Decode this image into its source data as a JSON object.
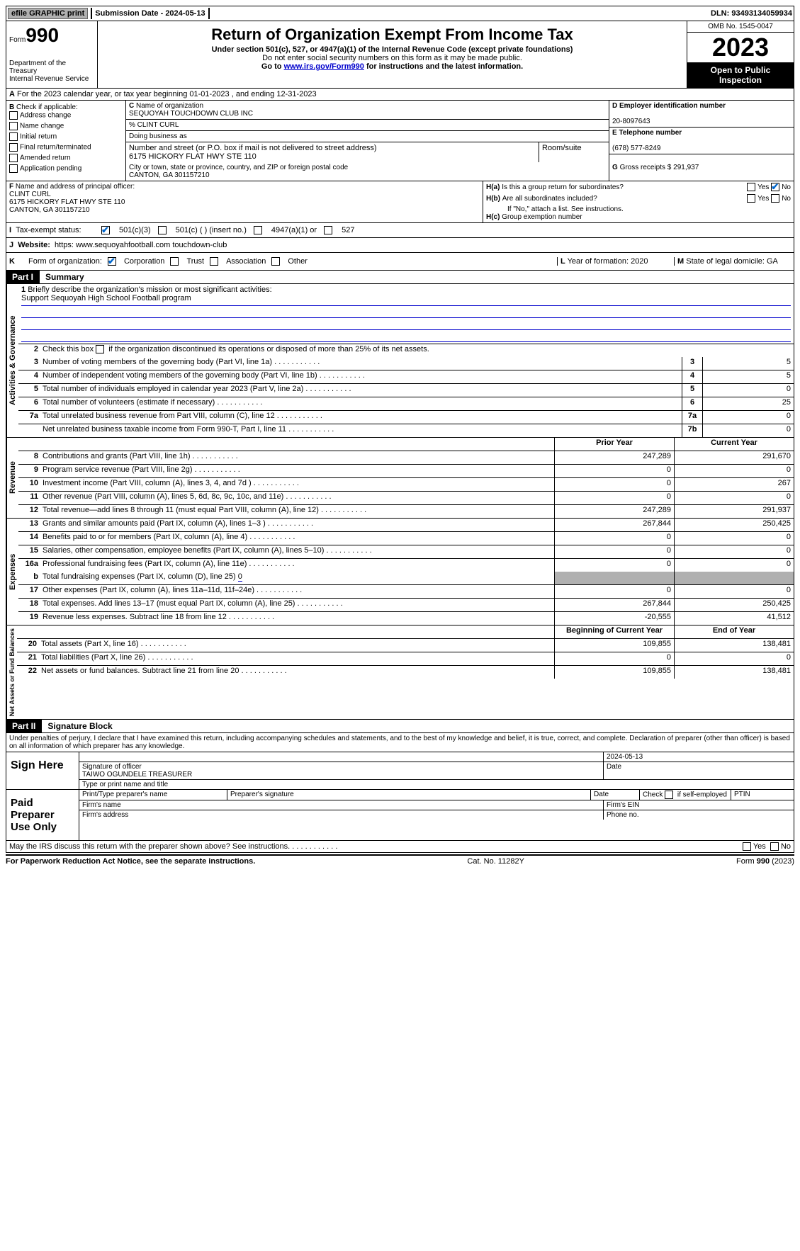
{
  "topbar": {
    "efile": "efile GRAPHIC print",
    "submission_label": "Submission Date - 2024-05-13",
    "dln": "DLN: 93493134059934"
  },
  "header": {
    "form_prefix": "Form",
    "form_number": "990",
    "department": "Department of the Treasury",
    "irs": "Internal Revenue Service",
    "title": "Return of Organization Exempt From Income Tax",
    "subtitle": "Under section 501(c), 527, or 4947(a)(1) of the Internal Revenue Code (except private foundations)",
    "line2": "Do not enter social security numbers on this form as it may be made public.",
    "line3_pre": "Go to ",
    "line3_link": "www.irs.gov/Form990",
    "line3_post": " for instructions and the latest information.",
    "omb": "OMB No. 1545-0047",
    "year": "2023",
    "open_public": "Open to Public Inspection"
  },
  "line_a": {
    "a": "A",
    "text": "For the 2023 calendar year, or tax year beginning 01-01-2023   , and ending 12-31-2023"
  },
  "box_b": {
    "label": "B",
    "hint": "Check if applicable:",
    "items": [
      "Address change",
      "Name change",
      "Initial return",
      "Final return/terminated",
      "Amended return",
      "Application pending"
    ]
  },
  "box_c": {
    "label": "C",
    "name_label": "Name of organization",
    "name": "SEQUOYAH TOUCHDOWN CLUB INC",
    "care_of": "% CLINT CURL",
    "dba_label": "Doing business as",
    "street_label": "Number and street (or P.O. box if mail is not delivered to street address)",
    "street": "6175 HICKORY FLAT HWY STE 110",
    "room_label": "Room/suite",
    "city_label": "City or town, state or province, country, and ZIP or foreign postal code",
    "city": "CANTON, GA  301157210"
  },
  "box_d": {
    "label": "D Employer identification number",
    "value": "20-8097643"
  },
  "box_e": {
    "label": "E Telephone number",
    "value": "(678) 577-8249"
  },
  "box_g": {
    "label": "G",
    "text": "Gross receipts $ 291,937"
  },
  "box_f": {
    "label": "F",
    "text": "Name and address of principal officer:",
    "name": "CLINT CURL",
    "line1": "6175 HICKORY FLAT HWY STE 110",
    "line2": "CANTON, GA  301157210"
  },
  "box_h": {
    "ha_label": "H(a)",
    "ha_text": "Is this a group return for subordinates?",
    "hb_label": "H(b)",
    "hb_text": "Are all subordinates included?",
    "hb_note": "If \"No,\" attach a list. See instructions.",
    "hc_label": "H(c)",
    "hc_text": "Group exemption number",
    "yes": "Yes",
    "no": "No"
  },
  "row_i": {
    "label": "I",
    "text": "Tax-exempt status:",
    "opts": [
      "501(c)(3)",
      "501(c) (  ) (insert no.)",
      "4947(a)(1) or",
      "527"
    ]
  },
  "row_j": {
    "label": "J",
    "text": "Website:",
    "value": "https: www.sequoyahfootball.com touchdown-club"
  },
  "row_k": {
    "label": "K",
    "text": "Form of organization:",
    "opts": [
      "Corporation",
      "Trust",
      "Association",
      "Other"
    ],
    "l_label": "L",
    "l_text": "Year of formation: 2020",
    "m_label": "M",
    "m_text": "State of legal domicile: GA"
  },
  "part1": {
    "label": "Part I",
    "title": "Summary",
    "line1_num": "1",
    "line1_text": "Briefly describe the organization's mission or most significant activities:",
    "mission": "Support Sequoyah High School Football program",
    "line2_num": "2",
    "line2_text": "Check this box    if the organization discontinued its operations or disposed of more than 25% of its net assets.",
    "governance_tab": "Activities & Governance",
    "revenue_tab": "Revenue",
    "expenses_tab": "Expenses",
    "netassets_tab": "Net Assets or Fund Balances",
    "prior_year": "Prior Year",
    "current_year": "Current Year",
    "beg_year": "Beginning of Current Year",
    "end_year": "End of Year",
    "rows_gov": [
      {
        "n": "3",
        "d": "Number of voting members of the governing body (Part VI, line 1a)",
        "bn": "3",
        "bv": "5"
      },
      {
        "n": "4",
        "d": "Number of independent voting members of the governing body (Part VI, line 1b)",
        "bn": "4",
        "bv": "5"
      },
      {
        "n": "5",
        "d": "Total number of individuals employed in calendar year 2023 (Part V, line 2a)",
        "bn": "5",
        "bv": "0"
      },
      {
        "n": "6",
        "d": "Total number of volunteers (estimate if necessary)",
        "bn": "6",
        "bv": "25"
      },
      {
        "n": "7a",
        "d": "Total unrelated business revenue from Part VIII, column (C), line 12",
        "bn": "7a",
        "bv": "0"
      },
      {
        "n": "",
        "d": "Net unrelated business taxable income from Form 990-T, Part I, line 11",
        "bn": "7b",
        "bv": "0"
      }
    ],
    "rows_rev": [
      {
        "n": "8",
        "d": "Contributions and grants (Part VIII, line 1h)",
        "p": "247,289",
        "c": "291,670"
      },
      {
        "n": "9",
        "d": "Program service revenue (Part VIII, line 2g)",
        "p": "0",
        "c": "0"
      },
      {
        "n": "10",
        "d": "Investment income (Part VIII, column (A), lines 3, 4, and 7d )",
        "p": "0",
        "c": "267"
      },
      {
        "n": "11",
        "d": "Other revenue (Part VIII, column (A), lines 5, 6d, 8c, 9c, 10c, and 11e)",
        "p": "0",
        "c": "0"
      },
      {
        "n": "12",
        "d": "Total revenue—add lines 8 through 11 (must equal Part VIII, column (A), line 12)",
        "p": "247,289",
        "c": "291,937"
      }
    ],
    "rows_exp": [
      {
        "n": "13",
        "d": "Grants and similar amounts paid (Part IX, column (A), lines 1–3 )",
        "p": "267,844",
        "c": "250,425"
      },
      {
        "n": "14",
        "d": "Benefits paid to or for members (Part IX, column (A), line 4)",
        "p": "0",
        "c": "0"
      },
      {
        "n": "15",
        "d": "Salaries, other compensation, employee benefits (Part IX, column (A), lines 5–10)",
        "p": "0",
        "c": "0"
      },
      {
        "n": "16a",
        "d": "Professional fundraising fees (Part IX, column (A), line 11e)",
        "p": "0",
        "c": "0"
      }
    ],
    "row_16b": {
      "n": "b",
      "d": "Total fundraising expenses (Part IX, column (D), line 25)",
      "v": "0"
    },
    "rows_exp2": [
      {
        "n": "17",
        "d": "Other expenses (Part IX, column (A), lines 11a–11d, 11f–24e)",
        "p": "0",
        "c": "0"
      },
      {
        "n": "18",
        "d": "Total expenses. Add lines 13–17 (must equal Part IX, column (A), line 25)",
        "p": "267,844",
        "c": "250,425"
      },
      {
        "n": "19",
        "d": "Revenue less expenses. Subtract line 18 from line 12",
        "p": "-20,555",
        "c": "41,512"
      }
    ],
    "rows_net": [
      {
        "n": "20",
        "d": "Total assets (Part X, line 16)",
        "p": "109,855",
        "c": "138,481"
      },
      {
        "n": "21",
        "d": "Total liabilities (Part X, line 26)",
        "p": "0",
        "c": "0"
      },
      {
        "n": "22",
        "d": "Net assets or fund balances. Subtract line 21 from line 20",
        "p": "109,855",
        "c": "138,481"
      }
    ]
  },
  "part2": {
    "label": "Part II",
    "title": "Signature Block",
    "declaration": "Under penalties of perjury, I declare that I have examined this return, including accompanying schedules and statements, and to the best of my knowledge and belief, it is true, correct, and complete. Declaration of preparer (other than officer) is based on all information of which preparer has any knowledge.",
    "sign_here": "Sign Here",
    "sig_officer": "Signature of officer",
    "officer_name": "TAIWO OGUNDELE  TREASURER",
    "type_name": "Type or print name and title",
    "date": "Date",
    "date_val": "2024-05-13",
    "paid_preparer": "Paid Preparer Use Only",
    "print_name": "Print/Type preparer's name",
    "prep_sig": "Preparer's signature",
    "check_self": "Check      if self-employed",
    "ptin": "PTIN",
    "firm_name": "Firm's name",
    "firm_ein": "Firm's EIN",
    "firm_addr": "Firm's address",
    "phone": "Phone no.",
    "may_irs": "May the IRS discuss this return with the preparer shown above? See instructions."
  },
  "footer": {
    "left": "For Paperwork Reduction Act Notice, see the separate instructions.",
    "mid": "Cat. No. 11282Y",
    "right": "Form 990 (2023)"
  }
}
